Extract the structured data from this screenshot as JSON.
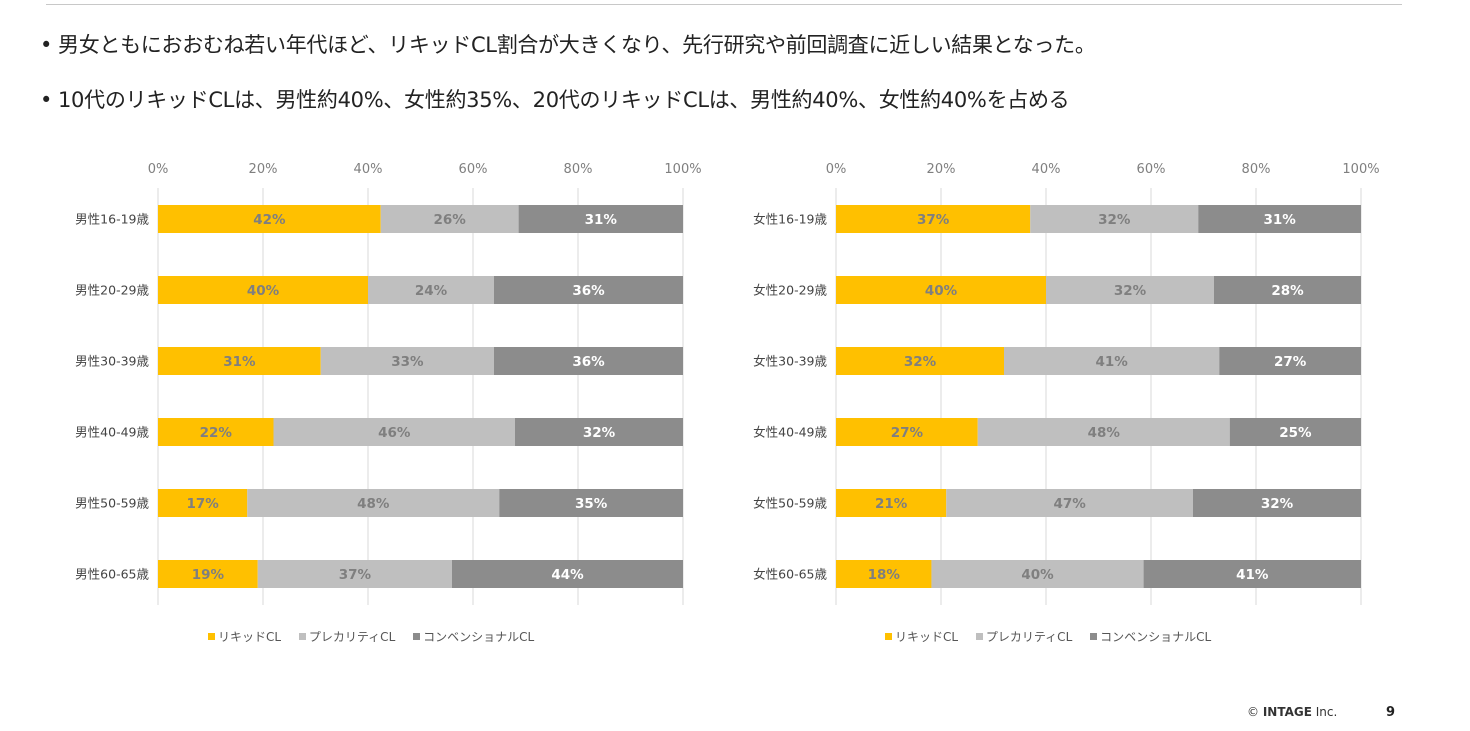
{
  "bullets": [
    "男女ともにおおむね若い年代ほど、リキッドCL割合が大きくなり、先行研究や前回調査に近しい結果となった。",
    "10代のリキッドCLは、男性約40%、女性約35%、20代のリキッドCLは、男性約40%、女性約40%を占める"
  ],
  "bullet_marker": "•",
  "colors": {
    "liquid": "#FFC000",
    "precarity": "#BFBFBF",
    "conventional": "#8C8C8C",
    "grid": "#d9d9d9"
  },
  "legend": [
    "リキッドCL",
    "プレカリティCL",
    "コンベンショナルCL"
  ],
  "chart_data": [
    {
      "type": "bar",
      "orientation": "horizontal",
      "stacked": "percent",
      "categories": [
        "男性16-19歳",
        "男性20-29歳",
        "男性30-39歳",
        "男性40-49歳",
        "男性50-59歳",
        "男性60-65歳"
      ],
      "series": [
        {
          "name": "リキッドCL",
          "values": [
            42,
            40,
            31,
            22,
            17,
            19
          ]
        },
        {
          "name": "プレカリティCL",
          "values": [
            26,
            24,
            33,
            46,
            48,
            37
          ]
        },
        {
          "name": "コンベンショナルCL",
          "values": [
            31,
            36,
            36,
            32,
            35,
            44
          ]
        }
      ],
      "xlim": [
        0,
        100
      ],
      "xticks": [
        "0%",
        "20%",
        "40%",
        "60%",
        "80%",
        "100%"
      ],
      "axis_position": "top",
      "legend_position": "bottom",
      "grid": true
    },
    {
      "type": "bar",
      "orientation": "horizontal",
      "stacked": "percent",
      "categories": [
        "女性16-19歳",
        "女性20-29歳",
        "女性30-39歳",
        "女性40-49歳",
        "女性50-59歳",
        "女性60-65歳"
      ],
      "series": [
        {
          "name": "リキッドCL",
          "values": [
            37,
            40,
            32,
            27,
            21,
            18
          ]
        },
        {
          "name": "プレカリティCL",
          "values": [
            32,
            32,
            41,
            48,
            47,
            40
          ]
        },
        {
          "name": "コンベンショナルCL",
          "values": [
            31,
            28,
            27,
            25,
            32,
            41
          ]
        }
      ],
      "xlim": [
        0,
        100
      ],
      "xticks": [
        "0%",
        "20%",
        "40%",
        "60%",
        "80%",
        "100%"
      ],
      "axis_position": "top",
      "legend_position": "bottom",
      "grid": true
    }
  ],
  "footer": {
    "copyright_symbol": "©",
    "company": "INTAGE",
    "suffix": "Inc.",
    "page_number": "9"
  }
}
